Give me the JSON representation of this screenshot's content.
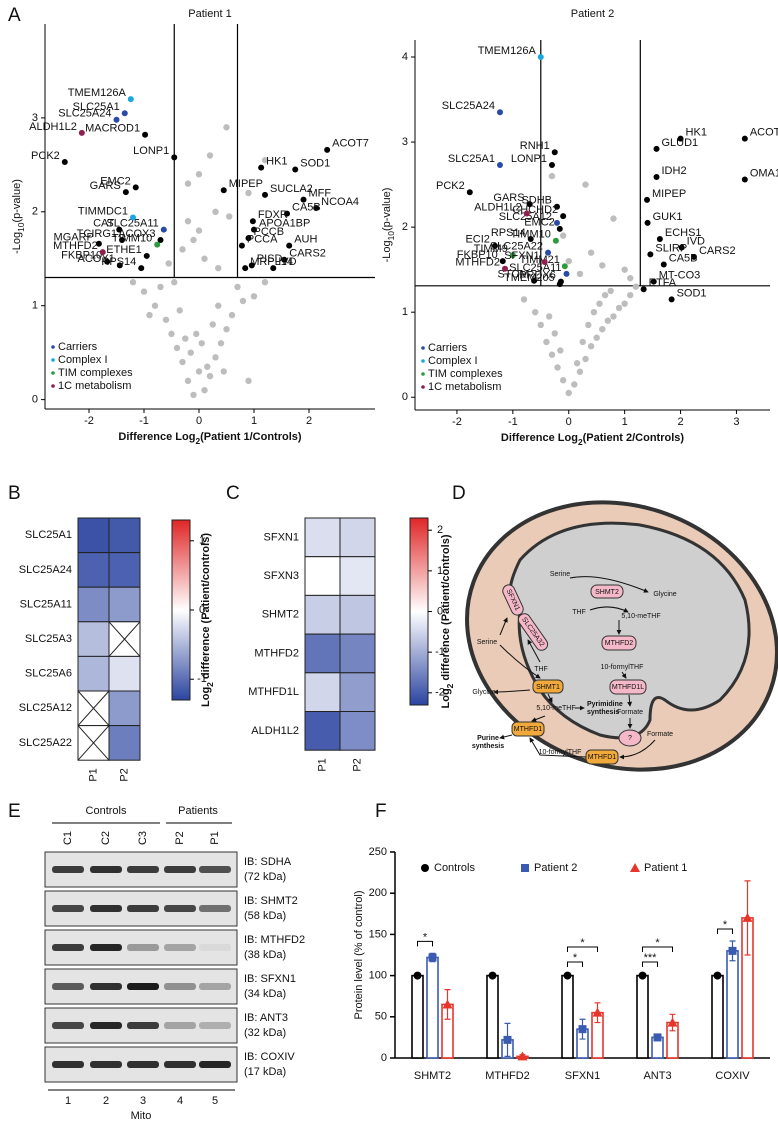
{
  "panel_labels": [
    "A",
    "B",
    "C",
    "D",
    "E",
    "F"
  ],
  "chart_data": [
    {
      "type": "scatter",
      "title": "Patient 1",
      "xlabel": {
        "text": "Difference Log",
        "sub": "2",
        "rest": "(Patient 1/Controls)"
      },
      "ylabel": {
        "text": "-Log",
        "sub": "10",
        "rest": "(p-value)"
      },
      "xlim": [
        -2.8,
        3.2
      ],
      "ylim": [
        -0.1,
        4.0
      ],
      "xticks": [
        -2,
        -1,
        0,
        1,
        2
      ],
      "yticks": [
        0,
        1,
        2,
        3
      ],
      "thresholds": {
        "x": [
          -0.45,
          0.7
        ],
        "y": 1.3
      },
      "legend": "lower left",
      "series": [
        {
          "color": "#bdbdbd",
          "x": [
            -0.1,
            0.1,
            -0.2,
            0.2,
            0.0,
            -0.3,
            0.3,
            -0.4,
            0.4,
            -0.5,
            0.5,
            -0.6,
            0.6,
            -0.8,
            0.8,
            -1.0,
            1.0,
            -0.15,
            0.15,
            -0.25,
            0.25,
            -0.35,
            0.35,
            -0.05,
            0.05,
            -0.7,
            0.7,
            -0.45,
            0.45,
            -1.2,
            0.9,
            -0.9,
            1.2,
            0.1,
            -0.1,
            0.3,
            -0.3,
            0.0,
            0.2,
            -0.2,
            0.5,
            0.55,
            0.9,
            1.2,
            -0.2,
            0.0,
            0.35,
            -0.55
          ],
          "y": [
            0.05,
            0.1,
            0.2,
            0.25,
            0.3,
            0.4,
            0.45,
            0.55,
            0.6,
            0.7,
            0.75,
            0.85,
            0.9,
            1.0,
            1.05,
            1.15,
            1.1,
            0.5,
            0.35,
            0.65,
            0.8,
            0.95,
            1.0,
            0.7,
            0.6,
            1.2,
            1.2,
            1.25,
            0.3,
            1.25,
            0.2,
            0.9,
            1.25,
            1.5,
            1.7,
            2.0,
            1.6,
            2.4,
            2.6,
            1.9,
            2.9,
            1.95,
            2.2,
            2.55,
            2.3,
            1.8,
            1.4,
            1.45
          ]
        },
        {
          "color": "#000000",
          "labels": [
            "PCK2",
            "LONP1",
            "MACROD1",
            "EMC2",
            "GARS",
            "CAT",
            "ACOX3",
            "TCIRG1",
            "MGARP",
            "ETHE1",
            "FKBP10",
            "ACOX1",
            "RPS14",
            "ACOT7",
            "HK1",
            "SOD1",
            "MIPEP",
            "SUCLA2",
            "MFF",
            "NCOA4",
            "CA5B",
            "FDXR",
            "APOA1BP",
            "PCCB",
            "AUH",
            "PCCA",
            "CARS2",
            "IVD",
            "MRPL14",
            "PISD"
          ],
          "x": [
            -2.44,
            -0.45,
            -0.98,
            -1.15,
            -1.33,
            -1.45,
            -0.7,
            -1.4,
            -1.82,
            -0.95,
            -1.67,
            -1.44,
            -1.05,
            2.33,
            1.13,
            1.75,
            0.45,
            1.2,
            1.9,
            2.13,
            1.6,
            0.98,
            1.0,
            0.9,
            1.64,
            0.78,
            1.55,
            1.35,
            0.84,
            0.96
          ],
          "y": [
            2.53,
            2.58,
            2.82,
            2.26,
            2.21,
            1.81,
            1.7,
            1.7,
            1.66,
            1.53,
            1.47,
            1.43,
            1.4,
            2.66,
            2.47,
            2.45,
            2.23,
            2.18,
            2.13,
            2.04,
            1.98,
            1.9,
            1.81,
            1.72,
            1.64,
            1.64,
            1.49,
            1.4,
            1.4,
            1.43
          ]
        },
        {
          "name": "Carriers",
          "color": "#2a4aa8",
          "labels": [
            "SLC25A1",
            "SLC25A24",
            "SLC25A11"
          ],
          "x": [
            -1.35,
            -1.5,
            -0.64
          ],
          "y": [
            3.05,
            2.98,
            1.81
          ]
        },
        {
          "name": "Complex I",
          "color": "#1aa7dd",
          "labels": [
            "TMEM126A",
            "TIMMDC1"
          ],
          "x": [
            -1.24,
            -1.2
          ],
          "y": [
            3.2,
            1.94
          ]
        },
        {
          "name": "TIM complexes",
          "color": "#2e9a3e",
          "labels": [
            "TIMM10"
          ],
          "x": [
            -0.76
          ],
          "y": [
            1.65
          ]
        },
        {
          "name": "1C metabolism",
          "color": "#8e1f4f",
          "labels": [
            "ALDH1L2",
            "MTHFD2"
          ],
          "x": [
            -2.13,
            -1.75
          ],
          "y": [
            2.84,
            1.57
          ]
        }
      ]
    },
    {
      "type": "scatter",
      "title": "Patient 2",
      "xlabel": {
        "text": "Difference Log",
        "sub": "2",
        "rest": "(Patient 2/Controls)"
      },
      "ylabel": {
        "text": "-Log",
        "sub": "10",
        "rest": "(p-value)"
      },
      "xlim": [
        -2.75,
        3.6
      ],
      "ylim": [
        -0.15,
        4.2
      ],
      "xticks": [
        -2,
        -1,
        0,
        1,
        2,
        3
      ],
      "yticks": [
        0,
        1,
        2,
        3,
        4
      ],
      "thresholds": {
        "x": [
          -0.5,
          1.28
        ],
        "y": 1.31
      },
      "legend": "lower left",
      "series": [
        {
          "color": "#bdbdbd",
          "x": [
            0.0,
            0.1,
            -0.1,
            0.2,
            -0.2,
            0.3,
            -0.3,
            0.4,
            -0.4,
            0.5,
            0.6,
            -0.5,
            0.7,
            0.8,
            0.9,
            1.0,
            -0.6,
            1.1,
            -0.8,
            0.15,
            -0.15,
            0.25,
            -0.25,
            0.35,
            0.45,
            0.55,
            0.65,
            0.75,
            -0.35,
            1.2,
            0.2,
            0.0,
            0.4,
            -0.1,
            1.0,
            0.8,
            0.3,
            -0.3,
            0.6,
            1.1
          ],
          "y": [
            0.05,
            0.15,
            0.2,
            0.3,
            0.35,
            0.45,
            0.5,
            0.6,
            0.65,
            0.7,
            0.8,
            0.85,
            0.9,
            0.95,
            1.05,
            1.1,
            1.0,
            1.2,
            1.15,
            0.4,
            0.55,
            0.65,
            0.75,
            0.85,
            1.0,
            1.1,
            1.2,
            1.25,
            0.95,
            1.3,
            1.45,
            1.6,
            1.7,
            1.9,
            1.5,
            2.1,
            2.5,
            2.6,
            1.55,
            1.4
          ]
        },
        {
          "color": "#000000",
          "labels": [
            "RNH1",
            "LONP1",
            "PCK2",
            "GARS",
            "SDHB",
            "CHCHD2",
            "EMC2",
            "RPS14",
            "ECI2",
            "FKBP10",
            "STOM",
            "PRDX6",
            "TMEM205",
            "HK1",
            "ACOT7",
            "GLUD1",
            "IDH2",
            "OMA1",
            "MIPEP",
            "GUK1",
            "ECHS1",
            "IVD",
            "SLIRP",
            "CARS2",
            "CA5B",
            "MT-CO3",
            "ETFA",
            "SOD1"
          ],
          "x": [
            -0.25,
            -0.3,
            -1.77,
            -0.7,
            -0.21,
            -0.1,
            -0.16,
            -0.68,
            -1.32,
            -1.18,
            -0.62,
            -0.14,
            -0.16,
            2.0,
            3.15,
            1.57,
            1.57,
            3.15,
            1.4,
            1.41,
            1.63,
            2.02,
            1.46,
            2.24,
            1.7,
            1.52,
            1.34,
            1.84
          ],
          "y": [
            2.88,
            2.73,
            2.41,
            2.27,
            2.24,
            2.13,
            1.98,
            1.86,
            1.78,
            1.6,
            1.37,
            1.36,
            1.33,
            3.04,
            3.04,
            2.92,
            2.59,
            2.56,
            2.32,
            2.05,
            1.86,
            1.76,
            1.68,
            1.65,
            1.56,
            1.36,
            1.27,
            1.15
          ]
        },
        {
          "name": "Carriers",
          "color": "#2a4aa8",
          "labels": [
            "SLC25A24",
            "SLC25A1",
            "SLC25A12",
            "SLC25A22",
            "SLC25A11"
          ],
          "x": [
            -1.23,
            -1.23,
            -0.21,
            -0.37,
            -0.04
          ],
          "y": [
            3.35,
            2.73,
            2.05,
            1.7,
            1.45
          ]
        },
        {
          "name": "Complex I",
          "color": "#1aa7dd",
          "labels": [
            "TMEM126A"
          ],
          "x": [
            -0.5
          ],
          "y": [
            4.0
          ]
        },
        {
          "name": "TIM complexes",
          "color": "#2e9a3e",
          "labels": [
            "TIMM10",
            "TIMM9",
            "TIMM21"
          ],
          "x": [
            -0.23,
            -1.0,
            -0.07
          ],
          "y": [
            1.84,
            1.67,
            1.54
          ]
        },
        {
          "name": "1C metabolism",
          "color": "#8e1f4f",
          "labels": [
            "ALDH1L2",
            "SFXN1",
            "MTHFD2"
          ],
          "x": [
            -0.75,
            -0.43,
            -1.14
          ],
          "y": [
            2.16,
            1.59,
            1.51
          ]
        }
      ]
    },
    {
      "type": "heatmap",
      "rows": [
        "SLC25A1",
        "SLC25A24",
        "SLC25A11",
        "SLC25A3",
        "SLC25A6",
        "SLC25A12",
        "SLC25A22"
      ],
      "columns": [
        "P1",
        "P2"
      ],
      "values": [
        [
          -1.2,
          -1.15
        ],
        [
          -1.1,
          -1.1
        ],
        [
          -0.8,
          -0.7
        ],
        [
          -0.45,
          null
        ],
        [
          -0.5,
          -0.2
        ],
        [
          null,
          -0.7
        ],
        [
          null,
          -0.9
        ]
      ],
      "zlim": [
        -1.3,
        1.3
      ],
      "zticks": [
        -1,
        0,
        1
      ],
      "colors": {
        "low": "#2b44a0",
        "mid": "#ffffff",
        "high": "#e02626"
      },
      "colorbar_label": {
        "text": "Log",
        "sub": "2",
        "rest": " difference (Patient/controls)"
      }
    },
    {
      "type": "heatmap",
      "rows": [
        "SFXN1",
        "SFXN3",
        "SHMT2",
        "MTHFD2",
        "MTHFD1L",
        "ALDH1L2"
      ],
      "columns": [
        "P1",
        "P2"
      ],
      "values": [
        [
          -0.4,
          -0.5
        ],
        [
          0,
          -0.3
        ],
        [
          -0.6,
          -0.7
        ],
        [
          -1.7,
          -1.5
        ],
        [
          -0.5,
          -1.2
        ],
        [
          -2.0,
          -1.4
        ]
      ],
      "zlim": [
        -2.3,
        2.3
      ],
      "zticks": [
        -2,
        -1,
        0,
        1,
        2
      ],
      "colors": {
        "low": "#2b44a0",
        "mid": "#ffffff",
        "high": "#e02626"
      },
      "colorbar_label": {
        "text": "Log",
        "sub": "2",
        "rest": " difference (Patient/controls)"
      }
    },
    {
      "type": "bar",
      "categories": [
        "SHMT2",
        "MTHFD2",
        "SFXN1",
        "ANT3",
        "COXIV"
      ],
      "ylabel": "Protein level (% of control)",
      "ylim": [
        0,
        250
      ],
      "yticks": [
        0,
        50,
        100,
        150,
        200,
        250
      ],
      "legend": "top",
      "series": [
        {
          "name": "Controls",
          "color": "#000000",
          "marker": "circle",
          "values": [
            100,
            100,
            100,
            100,
            100
          ],
          "errors": [
            2,
            2,
            2,
            2,
            2
          ]
        },
        {
          "name": "Patient 2",
          "color": "#3a5bb0",
          "marker": "square",
          "values": [
            122,
            22,
            35,
            25,
            130
          ],
          "errors": [
            5,
            20,
            12,
            4,
            12
          ],
          "significance": [
            "*",
            null,
            "*",
            "***",
            "*"
          ]
        },
        {
          "name": "Patient 1",
          "color": "#e8352b",
          "marker": "triangle",
          "values": [
            65,
            2,
            55,
            43,
            170
          ],
          "errors": [
            18,
            2,
            12,
            10,
            45
          ],
          "significance": [
            null,
            null,
            "*",
            "*",
            null
          ]
        }
      ]
    }
  ],
  "diagram": {
    "labels": [
      "Serine",
      "SHMT2",
      "Glycine",
      "5,10-meTHF",
      "THF",
      "SFXN1",
      "SLC25A32",
      "MTHFD2",
      "10-formylTHF",
      "MTHFD1L",
      "Formate",
      "?",
      "Serine",
      "Glycine",
      "THF",
      "SHMT1",
      "5,10-meTHF",
      "Pyrimidine",
      "synthesis",
      "MTHFD1",
      "Purine",
      "synthesis",
      "10-formylTHF",
      "MTHFD1",
      "Formate"
    ]
  },
  "blot": {
    "groups": [
      "Controls",
      "Patients"
    ],
    "lanes": [
      "C1",
      "C2",
      "C3",
      "P2",
      "P1"
    ],
    "probes": [
      {
        "name": "IB: SDHA",
        "size": "(72 kDa)"
      },
      {
        "name": "IB: SHMT2",
        "size": "(58 kDa)"
      },
      {
        "name": "IB: MTHFD2",
        "size": "(38 kDa)"
      },
      {
        "name": "IB: SFXN1",
        "size": "(34 kDa)"
      },
      {
        "name": "IB: ANT3",
        "size": "(32 kDa)"
      },
      {
        "name": "IB: COXIV",
        "size": "(17 kDa)"
      }
    ],
    "lane_numbers": [
      1,
      2,
      3,
      4,
      5
    ],
    "fraction": "Mito"
  }
}
